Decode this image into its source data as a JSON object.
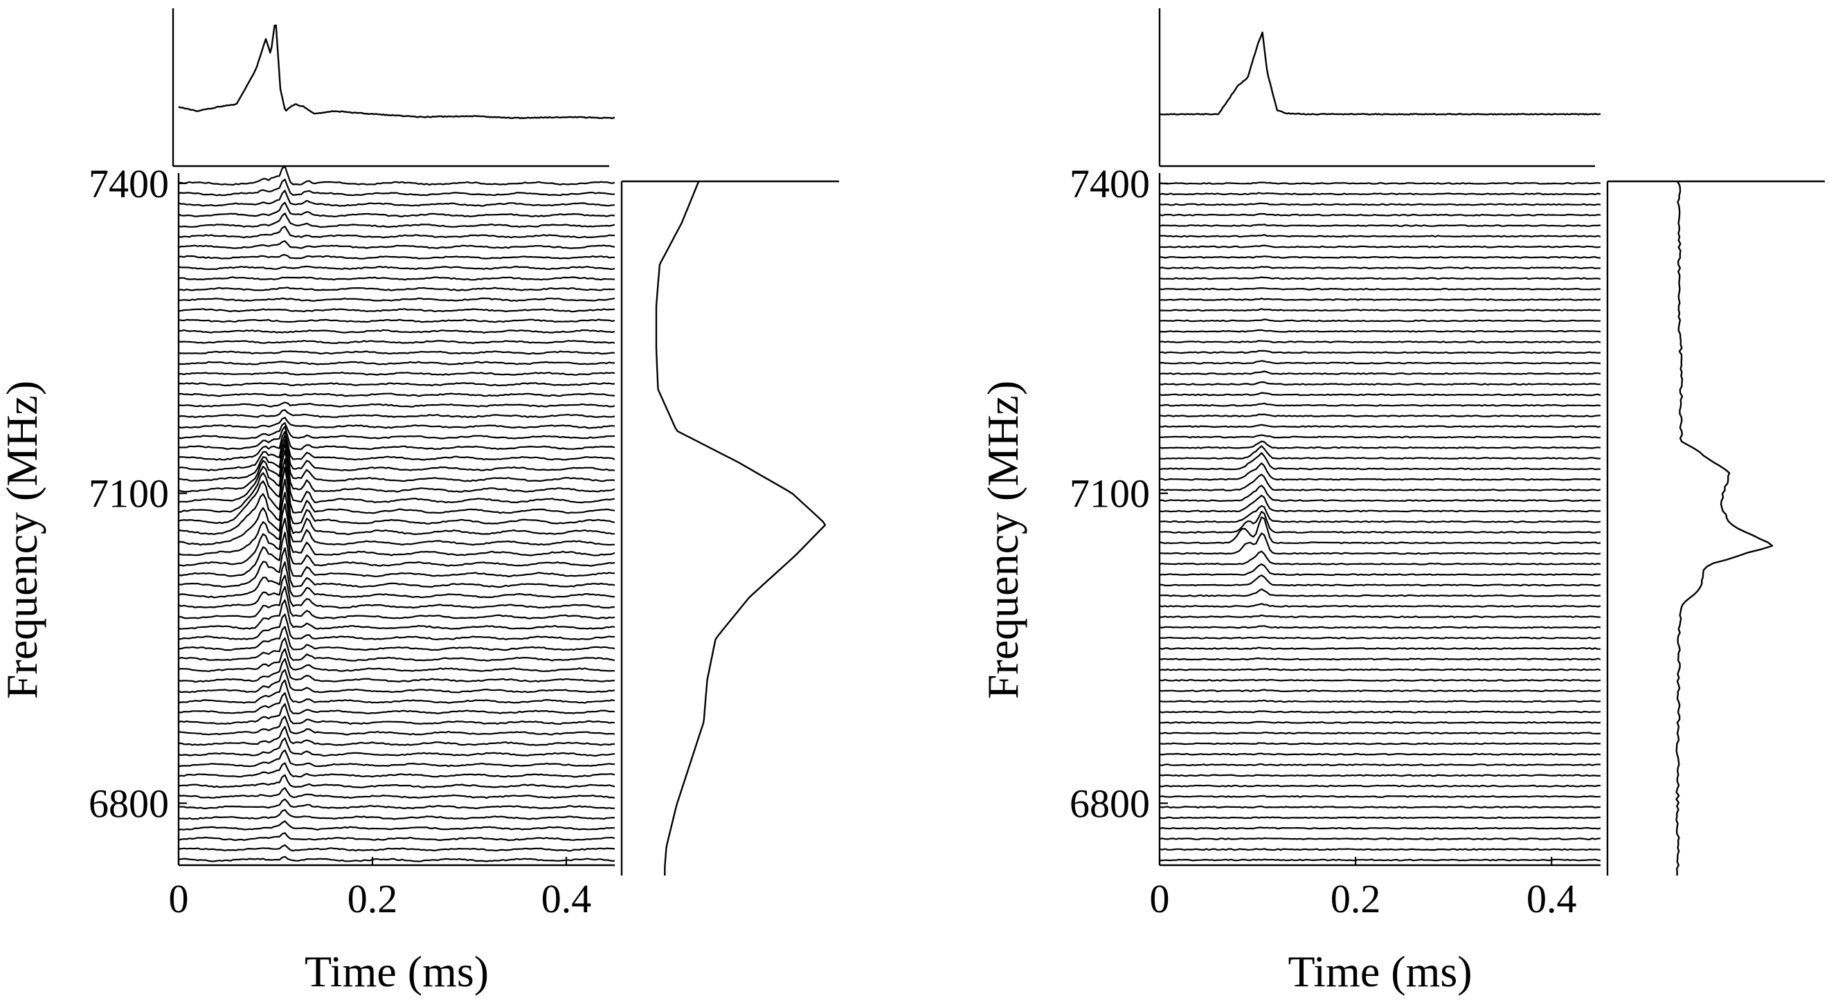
{
  "chart_data": [
    {
      "type": "line",
      "panel": "left",
      "xlabel": "Time (ms)",
      "ylabel": "Frequency (MHz)",
      "xlim": [
        0,
        0.45
      ],
      "ylim": [
        6740,
        7410
      ],
      "xticks": [
        "0",
        "0.2",
        "0.4"
      ],
      "xtick_values": [
        0,
        0.2,
        0.4
      ],
      "yticks": [
        "6800",
        "7100",
        "7400"
      ],
      "ytick_values": [
        6800,
        7100,
        7400
      ],
      "channels": 65,
      "pulse": {
        "center_ms": 0.11,
        "lead_ms_at_peak_channel": 0.025
      },
      "frequency_profile": {
        "freq": [
          7400,
          7360,
          7320,
          7280,
          7240,
          7200,
          7160,
          7130,
          7100,
          7070,
          7040,
          7000,
          6960,
          6920,
          6880,
          6840,
          6800,
          6760,
          6740
        ],
        "intensity": [
          0.25,
          0.15,
          0.02,
          0.0,
          0.0,
          0.01,
          0.12,
          0.48,
          0.8,
          1.0,
          0.82,
          0.55,
          0.35,
          0.3,
          0.28,
          0.2,
          0.12,
          0.06,
          0.05
        ]
      },
      "time_profile": {
        "time_ms": [
          0,
          0.02,
          0.04,
          0.06,
          0.08,
          0.09,
          0.095,
          0.1,
          0.105,
          0.11,
          0.12,
          0.13,
          0.14,
          0.16,
          0.2,
          0.25,
          0.3,
          0.35,
          0.4,
          0.45
        ],
        "intensity": [
          0.12,
          0.08,
          0.12,
          0.15,
          0.5,
          0.8,
          0.65,
          1.0,
          0.3,
          0.08,
          0.15,
          0.12,
          0.05,
          0.08,
          0.05,
          0.02,
          0.03,
          0.01,
          0.02,
          0.01
        ]
      }
    },
    {
      "type": "line",
      "panel": "right",
      "xlabel": "Time (ms)",
      "ylabel": "Frequency (MHz)",
      "xlim": [
        0,
        0.45
      ],
      "ylim": [
        6740,
        7410
      ],
      "xticks": [
        "0",
        "0.2",
        "0.4"
      ],
      "xtick_values": [
        0,
        0.2,
        0.4
      ],
      "yticks": [
        "6800",
        "7100",
        "7400"
      ],
      "ytick_values": [
        6800,
        7100,
        7400
      ],
      "channels": 65,
      "pulse": {
        "center_ms": 0.105,
        "lead_ms_at_peak_channel": 0.02
      },
      "frequency_profile": {
        "freq": [
          7400,
          7340,
          7280,
          7220,
          7180,
          7150,
          7120,
          7090,
          7070,
          7050,
          7030,
          7010,
          6990,
          6950,
          6900,
          6850,
          6800,
          6760,
          6740
        ],
        "intensity": [
          0.02,
          0.03,
          0.02,
          0.05,
          0.04,
          0.05,
          0.55,
          0.45,
          0.55,
          1.0,
          0.3,
          0.25,
          0.04,
          0.02,
          0.02,
          0.01,
          0.01,
          0.01,
          0.01
        ]
      },
      "time_profile": {
        "time_ms": [
          0,
          0.02,
          0.04,
          0.06,
          0.08,
          0.09,
          0.1,
          0.105,
          0.11,
          0.12,
          0.13,
          0.15,
          0.2,
          0.3,
          0.45
        ],
        "intensity": [
          0.0,
          0.0,
          0.0,
          0.0,
          0.35,
          0.45,
          0.85,
          1.0,
          0.5,
          0.05,
          0.01,
          0.0,
          0.0,
          0.0,
          0.0
        ]
      }
    }
  ]
}
